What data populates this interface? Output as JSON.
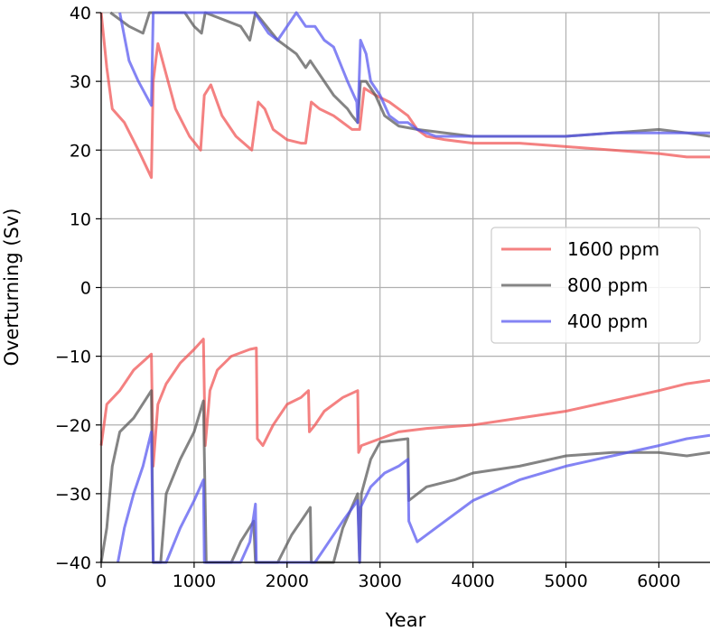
{
  "chart_data": {
    "type": "line",
    "title": "",
    "xlabel": "Year",
    "ylabel": "Overturning (Sv)",
    "xlim": [
      0,
      6550
    ],
    "ylim": [
      -40,
      40
    ],
    "xticks": [
      "0",
      "1000",
      "2000",
      "3000",
      "4000",
      "5000",
      "6000"
    ],
    "xtick_values": [
      0,
      1000,
      2000,
      3000,
      4000,
      5000,
      6000
    ],
    "yticks": [
      "−40",
      "−30",
      "−20",
      "−10",
      "0",
      "10",
      "20",
      "30",
      "40"
    ],
    "ytick_values": [
      -40,
      -30,
      -20,
      -10,
      0,
      10,
      20,
      30,
      40
    ],
    "grid": true,
    "legend_position": "center-right",
    "series": [
      {
        "name": "1600 ppm",
        "color": "#f05050",
        "upper": [
          [
            0,
            40
          ],
          [
            60,
            32
          ],
          [
            120,
            26
          ],
          [
            250,
            24
          ],
          [
            400,
            20
          ],
          [
            540,
            16
          ],
          [
            560,
            30
          ],
          [
            610,
            35.5
          ],
          [
            700,
            31
          ],
          [
            800,
            26
          ],
          [
            950,
            22
          ],
          [
            1070,
            20
          ],
          [
            1110,
            28
          ],
          [
            1180,
            29.5
          ],
          [
            1300,
            25
          ],
          [
            1450,
            22
          ],
          [
            1620,
            20
          ],
          [
            1690,
            27
          ],
          [
            1760,
            26
          ],
          [
            1850,
            23
          ],
          [
            2000,
            21.5
          ],
          [
            2150,
            21
          ],
          [
            2200,
            21
          ],
          [
            2260,
            27
          ],
          [
            2350,
            26
          ],
          [
            2500,
            25
          ],
          [
            2700,
            23
          ],
          [
            2780,
            23
          ],
          [
            2830,
            29
          ],
          [
            2950,
            28
          ],
          [
            3100,
            27
          ],
          [
            3200,
            26
          ],
          [
            3300,
            25
          ],
          [
            3400,
            23
          ],
          [
            3500,
            22
          ],
          [
            3700,
            21.5
          ],
          [
            4000,
            21
          ],
          [
            4500,
            21
          ],
          [
            5000,
            20.5
          ],
          [
            5500,
            20
          ],
          [
            6000,
            19.5
          ],
          [
            6300,
            19
          ],
          [
            6550,
            19
          ]
        ],
        "lower": [
          [
            0,
            -23
          ],
          [
            30,
            -20
          ],
          [
            60,
            -17
          ],
          [
            200,
            -15
          ],
          [
            350,
            -12
          ],
          [
            540,
            -9.7
          ],
          [
            560,
            -26
          ],
          [
            610,
            -17
          ],
          [
            700,
            -14
          ],
          [
            850,
            -11
          ],
          [
            1000,
            -9
          ],
          [
            1100,
            -7.5
          ],
          [
            1120,
            -23
          ],
          [
            1170,
            -15
          ],
          [
            1250,
            -12
          ],
          [
            1400,
            -10
          ],
          [
            1600,
            -9
          ],
          [
            1670,
            -8.8
          ],
          [
            1680,
            -22
          ],
          [
            1740,
            -23
          ],
          [
            1850,
            -20
          ],
          [
            2000,
            -17
          ],
          [
            2150,
            -16
          ],
          [
            2230,
            -15
          ],
          [
            2240,
            -21
          ],
          [
            2300,
            -20
          ],
          [
            2400,
            -18
          ],
          [
            2600,
            -16
          ],
          [
            2760,
            -15
          ],
          [
            2770,
            -24
          ],
          [
            2800,
            -23
          ],
          [
            3000,
            -22
          ],
          [
            3200,
            -21
          ],
          [
            3500,
            -20.5
          ],
          [
            4000,
            -20
          ],
          [
            4500,
            -19
          ],
          [
            5000,
            -18
          ],
          [
            5500,
            -16.5
          ],
          [
            6000,
            -15
          ],
          [
            6300,
            -14
          ],
          [
            6550,
            -13.5
          ]
        ]
      },
      {
        "name": "800 ppm",
        "color": "#555555",
        "upper": [
          [
            100,
            40
          ],
          [
            300,
            38
          ],
          [
            450,
            37
          ],
          [
            520,
            40
          ],
          [
            900,
            40
          ],
          [
            1000,
            38
          ],
          [
            1080,
            37
          ],
          [
            1120,
            40
          ],
          [
            1500,
            38
          ],
          [
            1600,
            36
          ],
          [
            1660,
            40
          ],
          [
            1900,
            36
          ],
          [
            2100,
            34
          ],
          [
            2200,
            32
          ],
          [
            2250,
            33
          ],
          [
            2350,
            31
          ],
          [
            2500,
            28
          ],
          [
            2650,
            26
          ],
          [
            2700,
            25
          ],
          [
            2760,
            24
          ],
          [
            2790,
            30
          ],
          [
            2850,
            30
          ],
          [
            2950,
            28
          ],
          [
            3050,
            25
          ],
          [
            3200,
            23.5
          ],
          [
            3400,
            23
          ],
          [
            3700,
            22.5
          ],
          [
            4000,
            22
          ],
          [
            4500,
            22
          ],
          [
            5000,
            22
          ],
          [
            5500,
            22.5
          ],
          [
            6000,
            23
          ],
          [
            6300,
            22.5
          ],
          [
            6550,
            22
          ]
        ],
        "lower": [
          [
            0,
            -40
          ],
          [
            60,
            -35
          ],
          [
            120,
            -26
          ],
          [
            200,
            -21
          ],
          [
            350,
            -19
          ],
          [
            540,
            -15
          ],
          [
            560,
            -40
          ],
          [
            640,
            -40
          ],
          [
            700,
            -30
          ],
          [
            850,
            -25
          ],
          [
            1000,
            -21
          ],
          [
            1100,
            -16.5
          ],
          [
            1130,
            -40
          ],
          [
            1400,
            -40
          ],
          [
            1500,
            -37
          ],
          [
            1640,
            -34
          ],
          [
            1660,
            -40
          ],
          [
            1900,
            -40
          ],
          [
            2050,
            -36
          ],
          [
            2200,
            -33
          ],
          [
            2250,
            -32
          ],
          [
            2260,
            -40
          ],
          [
            2500,
            -40
          ],
          [
            2600,
            -35
          ],
          [
            2760,
            -30
          ],
          [
            2780,
            -40
          ],
          [
            2800,
            -30
          ],
          [
            2900,
            -25
          ],
          [
            3000,
            -22.5
          ],
          [
            3300,
            -22
          ],
          [
            3310,
            -31
          ],
          [
            3500,
            -29
          ],
          [
            3800,
            -28
          ],
          [
            4000,
            -27
          ],
          [
            4500,
            -26
          ],
          [
            5000,
            -24.5
          ],
          [
            5500,
            -24
          ],
          [
            6000,
            -24
          ],
          [
            6300,
            -24.5
          ],
          [
            6550,
            -24
          ]
        ]
      },
      {
        "name": "400 ppm",
        "color": "#5555f0",
        "upper": [
          [
            200,
            40
          ],
          [
            300,
            33
          ],
          [
            400,
            30
          ],
          [
            540,
            26.5
          ],
          [
            560,
            40
          ],
          [
            1500,
            40
          ],
          [
            1650,
            40
          ],
          [
            1700,
            39
          ],
          [
            1800,
            37
          ],
          [
            1900,
            36
          ],
          [
            2100,
            40
          ],
          [
            2200,
            38
          ],
          [
            2300,
            38
          ],
          [
            2400,
            36
          ],
          [
            2500,
            35
          ],
          [
            2650,
            30
          ],
          [
            2750,
            27
          ],
          [
            2760,
            24
          ],
          [
            2790,
            36
          ],
          [
            2850,
            34
          ],
          [
            2900,
            30
          ],
          [
            3000,
            28
          ],
          [
            3100,
            25
          ],
          [
            3200,
            24
          ],
          [
            3300,
            24
          ],
          [
            3400,
            23
          ],
          [
            3600,
            22
          ],
          [
            4000,
            22
          ],
          [
            4500,
            22
          ],
          [
            5000,
            22
          ],
          [
            5500,
            22.5
          ],
          [
            6000,
            22.5
          ],
          [
            6300,
            22.5
          ],
          [
            6550,
            22.5
          ]
        ],
        "lower": [
          [
            180,
            -40
          ],
          [
            250,
            -35
          ],
          [
            350,
            -30
          ],
          [
            450,
            -26
          ],
          [
            540,
            -21
          ],
          [
            560,
            -40
          ],
          [
            700,
            -40
          ],
          [
            850,
            -35
          ],
          [
            1000,
            -31
          ],
          [
            1100,
            -28
          ],
          [
            1110,
            -40
          ],
          [
            1500,
            -40
          ],
          [
            1600,
            -37
          ],
          [
            1660,
            -31.5
          ],
          [
            1670,
            -40
          ],
          [
            2300,
            -40
          ],
          [
            2400,
            -38
          ],
          [
            2600,
            -34
          ],
          [
            2760,
            -31
          ],
          [
            2780,
            -40
          ],
          [
            2790,
            -32
          ],
          [
            2900,
            -29
          ],
          [
            3050,
            -27
          ],
          [
            3200,
            -26
          ],
          [
            3300,
            -25
          ],
          [
            3310,
            -34
          ],
          [
            3400,
            -37
          ],
          [
            3600,
            -35
          ],
          [
            3800,
            -33
          ],
          [
            4000,
            -31
          ],
          [
            4500,
            -28
          ],
          [
            5000,
            -26
          ],
          [
            5500,
            -24.5
          ],
          [
            6000,
            -23
          ],
          [
            6300,
            -22
          ],
          [
            6550,
            -21.5
          ]
        ]
      }
    ]
  },
  "icons": {
    "legend_swatch": "line-swatch"
  }
}
